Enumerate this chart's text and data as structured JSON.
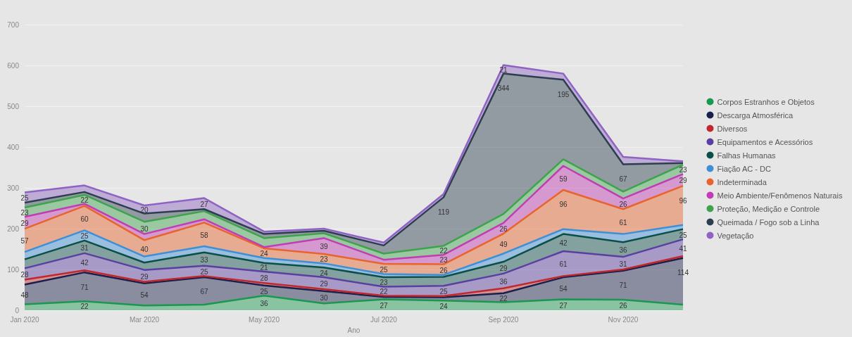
{
  "chart_data": {
    "type": "area",
    "stacked": true,
    "xlabel": "Ano",
    "categories": [
      "Jan 2020",
      null,
      "Mar 2020",
      null,
      "May 2020",
      null,
      "Jul 2020",
      null,
      "Sep 2020",
      null,
      "Nov 2020",
      null
    ],
    "ylim": [
      0,
      700
    ],
    "yticks": [
      0,
      100,
      200,
      300,
      400,
      500,
      600,
      700
    ],
    "grid": "y",
    "legend": "right",
    "marker": "none",
    "series": [
      {
        "name": "Corpos Estranhos e Objetos",
        "color": "#1a9850",
        "values": [
          15,
          22,
          12,
          14,
          36,
          17,
          27,
          24,
          20,
          27,
          26,
          14
        ],
        "value_labels": [
          null,
          "22",
          null,
          null,
          "36",
          null,
          "27",
          "24",
          null,
          "27",
          "26",
          null
        ]
      },
      {
        "name": "Descarga Atmosférica",
        "color": "#1b1f4b",
        "values": [
          48,
          71,
          54,
          67,
          25,
          30,
          6,
          8,
          22,
          54,
          71,
          114
        ],
        "value_labels": [
          "48",
          "71",
          "54",
          "67",
          "25",
          "30",
          null,
          null,
          "22",
          "54",
          "71",
          "114"
        ]
      },
      {
        "name": "Diversos",
        "color": "#c0282d",
        "values": [
          12,
          5,
          4,
          3,
          6,
          5,
          3,
          3,
          12,
          3,
          3,
          5
        ],
        "value_labels": [
          null,
          null,
          null,
          null,
          null,
          null,
          null,
          null,
          null,
          null,
          null,
          null
        ]
      },
      {
        "name": "Equipamentos e Acessórios",
        "color": "#5b3fa0",
        "values": [
          28,
          42,
          29,
          25,
          28,
          29,
          22,
          25,
          36,
          61,
          31,
          41
        ],
        "value_labels": [
          "28",
          "42",
          "29",
          "25",
          "28",
          "29",
          "22",
          "25",
          "36",
          "61",
          "31",
          "41"
        ]
      },
      {
        "name": "Falhas Humanas",
        "color": "#0b4f4a",
        "values": [
          22,
          31,
          18,
          33,
          21,
          24,
          23,
          22,
          29,
          42,
          36,
          25
        ],
        "value_labels": [
          null,
          "31",
          null,
          "33",
          "21",
          "24",
          "23",
          null,
          "29",
          "42",
          "36",
          "25"
        ]
      },
      {
        "name": "Fiação AC - DC",
        "color": "#3d8fd6",
        "values": [
          18,
          25,
          15,
          15,
          12,
          10,
          8,
          5,
          20,
          12,
          20,
          10
        ],
        "value_labels": [
          null,
          "25",
          null,
          null,
          null,
          null,
          null,
          null,
          null,
          null,
          null,
          null
        ]
      },
      {
        "name": "Indeterminada",
        "color": "#e8642c",
        "values": [
          57,
          60,
          40,
          58,
          24,
          23,
          25,
          26,
          49,
          96,
          61,
          96
        ],
        "value_labels": [
          "57",
          "60",
          "40",
          "58",
          "24",
          "23",
          "25",
          "26",
          "49",
          "96",
          "61",
          "96"
        ]
      },
      {
        "name": "Meio Ambiente/Fenômenos Naturais",
        "color": "#c23cb5",
        "values": [
          29,
          5,
          15,
          8,
          3,
          39,
          10,
          23,
          26,
          59,
          26,
          29
        ],
        "value_labels": [
          "29",
          null,
          null,
          null,
          null,
          "39",
          null,
          "23",
          "26",
          "59",
          "26",
          "29"
        ]
      },
      {
        "name": "Proteção, Medição e Controle",
        "color": "#3fa34d",
        "values": [
          23,
          22,
          30,
          20,
          22,
          12,
          15,
          22,
          22,
          16,
          17,
          23
        ],
        "value_labels": [
          "23",
          "22",
          "30",
          null,
          null,
          null,
          null,
          "22",
          null,
          null,
          null,
          "23"
        ]
      },
      {
        "name": "Queimada / Fogo sob a Linha",
        "color": "#2d3e50",
        "values": [
          12,
          7,
          20,
          5,
          10,
          6,
          20,
          119,
          344,
          195,
          67,
          4
        ],
        "value_labels": [
          null,
          null,
          null,
          null,
          null,
          null,
          null,
          "119",
          "344",
          "195",
          "67",
          null
        ]
      },
      {
        "name": "Vegetação",
        "color": "#8e63c4",
        "values": [
          25,
          16,
          20,
          27,
          6,
          5,
          7,
          8,
          21,
          15,
          18,
          4
        ],
        "value_labels": [
          "25",
          null,
          "20",
          "27",
          null,
          null,
          null,
          null,
          "21",
          null,
          null,
          null
        ]
      }
    ]
  }
}
